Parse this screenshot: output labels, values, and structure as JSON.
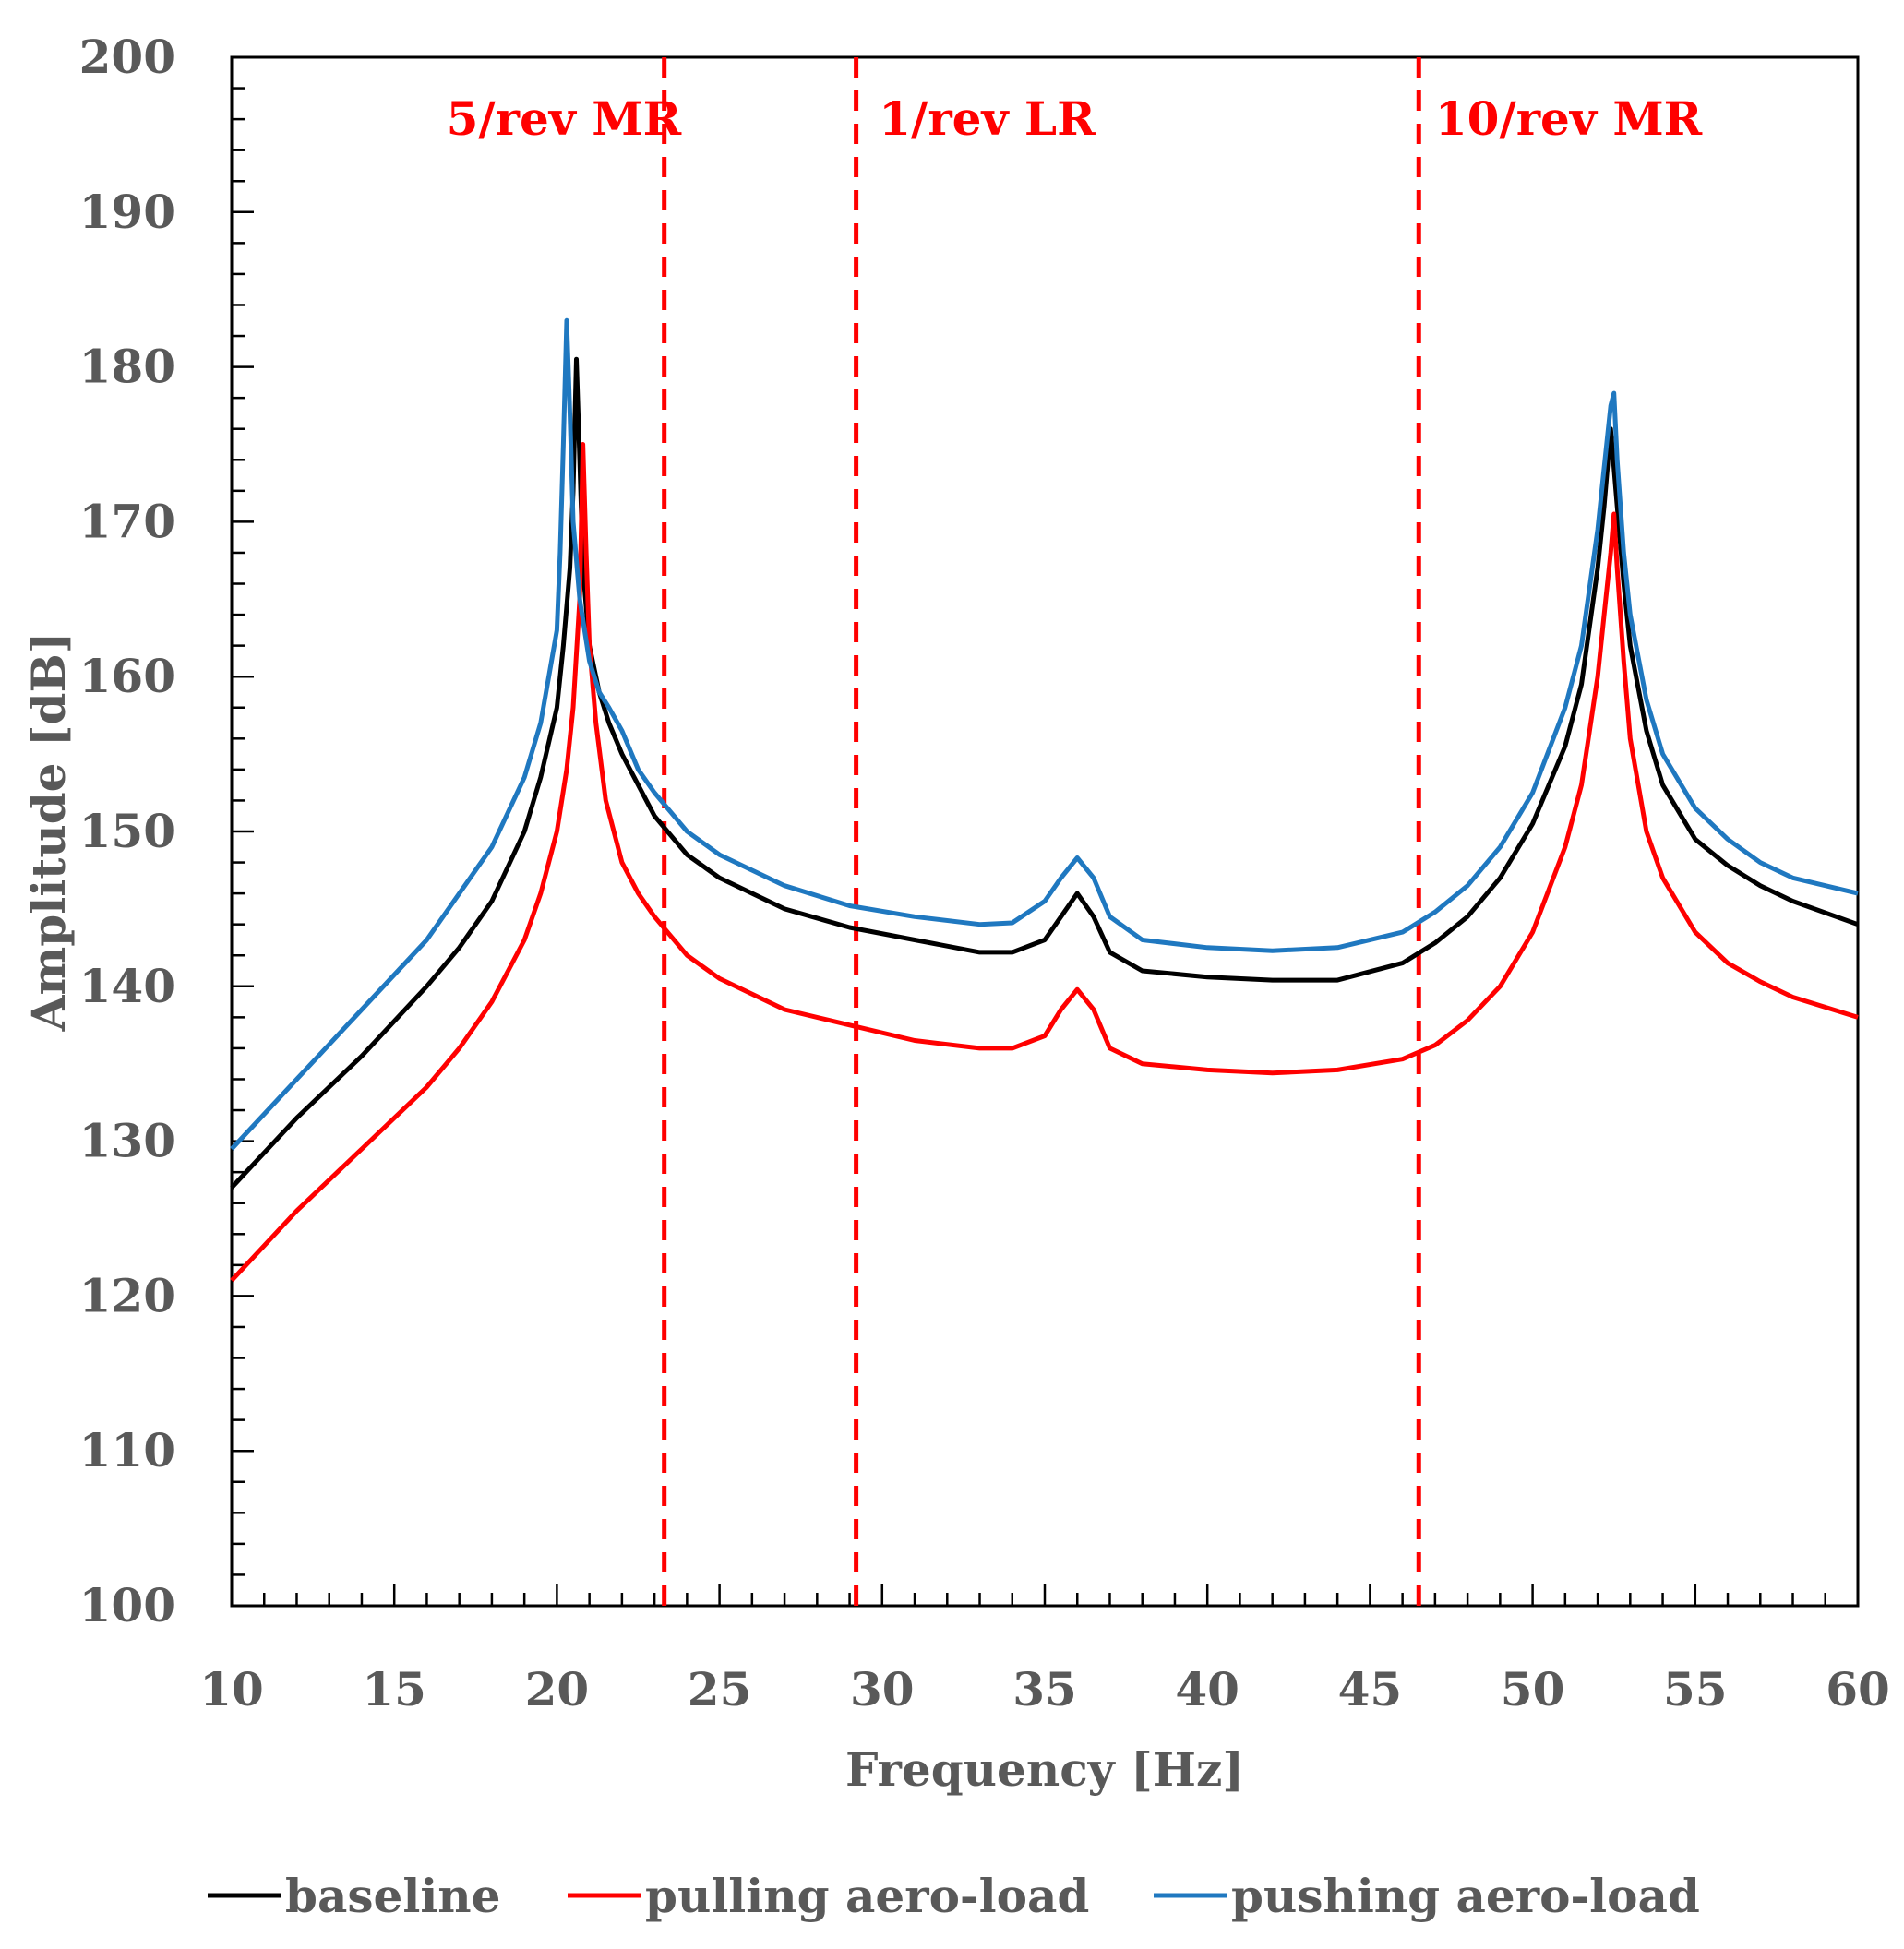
{
  "chart_data": {
    "type": "line",
    "xlabel": "Frequency [Hz]",
    "ylabel": "Amplitude [dB]",
    "xlim": [
      10,
      60
    ],
    "ylim": [
      100,
      200
    ],
    "x_ticks": [
      "10",
      "15",
      "20",
      "25",
      "30",
      "35",
      "40",
      "45",
      "50",
      "55",
      "60"
    ],
    "y_ticks": [
      "100",
      "110",
      "120",
      "130",
      "140",
      "150",
      "160",
      "170",
      "180",
      "190",
      "200"
    ],
    "grid": false,
    "legend_position": "bottom",
    "vertical_lines": [
      {
        "x": 23.3,
        "color": "#ff0000",
        "style": "dashed"
      },
      {
        "x": 29.2,
        "color": "#ff0000",
        "style": "dashed"
      },
      {
        "x": 46.5,
        "color": "#ff0000",
        "style": "dashed"
      }
    ],
    "annotations": [
      {
        "text": "5/rev MR",
        "x": 16.6,
        "y": 196.0
      },
      {
        "text": "1/rev LR",
        "x": 29.9,
        "y": 196.0
      },
      {
        "text": "10/rev MR",
        "x": 47.0,
        "y": 196.0
      }
    ],
    "series": [
      {
        "name": "baseline",
        "color": "#000000",
        "x": [
          10,
          12,
          14,
          16,
          17,
          18,
          19,
          19.5,
          20,
          20.2,
          20.4,
          20.5,
          20.6,
          20.7,
          20.8,
          21,
          21.3,
          21.6,
          22,
          22.5,
          23,
          24,
          25,
          27,
          29,
          31,
          33,
          34,
          35,
          35.5,
          36,
          36.5,
          37,
          38,
          40,
          42,
          44,
          46,
          47,
          48,
          49,
          50,
          51,
          51.5,
          52,
          52.2,
          52.4,
          52.6,
          52.8,
          53,
          53.5,
          54,
          55,
          56,
          57,
          58,
          60
        ],
        "y": [
          127,
          131.5,
          135.5,
          140,
          142.5,
          145.5,
          150,
          153.5,
          158,
          162,
          167,
          172,
          180.5,
          174,
          167,
          162,
          159,
          157,
          155,
          153,
          151,
          148.5,
          147,
          145,
          143.8,
          143,
          142.2,
          142.2,
          143,
          144.5,
          146,
          144.5,
          142.2,
          141,
          140.6,
          140.4,
          140.4,
          141.5,
          142.8,
          144.5,
          147,
          150.5,
          155.5,
          159.5,
          167,
          171,
          176,
          171,
          166,
          162,
          156.5,
          153,
          149.5,
          147.8,
          146.5,
          145.5,
          144
        ]
      },
      {
        "name": "pulling aero-load",
        "color": "#ff0000",
        "x": [
          10,
          12,
          14,
          16,
          17,
          18,
          19,
          19.5,
          20,
          20.3,
          20.5,
          20.7,
          20.8,
          20.9,
          21,
          21.2,
          21.5,
          22,
          22.5,
          23,
          24,
          25,
          27,
          29,
          31,
          33,
          34,
          35,
          35.5,
          36,
          36.5,
          37,
          38,
          40,
          42,
          44,
          46,
          47,
          48,
          49,
          50,
          51,
          51.5,
          52,
          52.2,
          52.4,
          52.5,
          52.6,
          52.8,
          53,
          53.5,
          54,
          55,
          56,
          57,
          58,
          60
        ],
        "y": [
          121,
          125.5,
          129.5,
          133.5,
          136,
          139,
          143,
          146,
          150,
          154,
          158,
          165,
          175,
          168,
          162,
          157,
          152,
          148,
          146,
          144.5,
          142,
          140.5,
          138.5,
          137.5,
          136.5,
          136,
          136,
          136.8,
          138.5,
          139.8,
          138.5,
          136,
          135,
          134.6,
          134.4,
          134.6,
          135.3,
          136.2,
          137.8,
          140,
          143.5,
          149,
          153,
          160,
          164,
          168,
          170.5,
          167,
          161,
          156,
          150,
          147,
          143.5,
          141.5,
          140.3,
          139.3,
          138
        ]
      },
      {
        "name": "pushing aero-load",
        "color": "#1f78c0",
        "x": [
          10,
          12,
          14,
          16,
          17,
          18,
          19,
          19.5,
          20,
          20.1,
          20.2,
          20.3,
          20.4,
          20.5,
          20.7,
          21,
          21.3,
          21.6,
          22,
          22.5,
          23,
          24,
          25,
          27,
          29,
          31,
          33,
          34,
          35,
          35.5,
          36,
          36.5,
          37,
          38,
          40,
          42,
          44,
          46,
          47,
          48,
          49,
          50,
          51,
          51.5,
          52,
          52.2,
          52.4,
          52.5,
          52.6,
          52.8,
          53,
          53.5,
          54,
          55,
          56,
          57,
          58,
          60
        ],
        "y": [
          129.5,
          134,
          138.5,
          143,
          146,
          149,
          153.5,
          157,
          163,
          168,
          175,
          183,
          177,
          170,
          165,
          161,
          159,
          158,
          156.5,
          154,
          152.5,
          150,
          148.5,
          146.5,
          145.2,
          144.5,
          144,
          144.1,
          145.5,
          147,
          148.3,
          147,
          144.5,
          143,
          142.5,
          142.3,
          142.5,
          143.5,
          144.8,
          146.5,
          149,
          152.5,
          158,
          162,
          169.5,
          173.5,
          177.5,
          178.3,
          174,
          168,
          164,
          158.5,
          155,
          151.5,
          149.5,
          148,
          147,
          146
        ]
      }
    ]
  }
}
